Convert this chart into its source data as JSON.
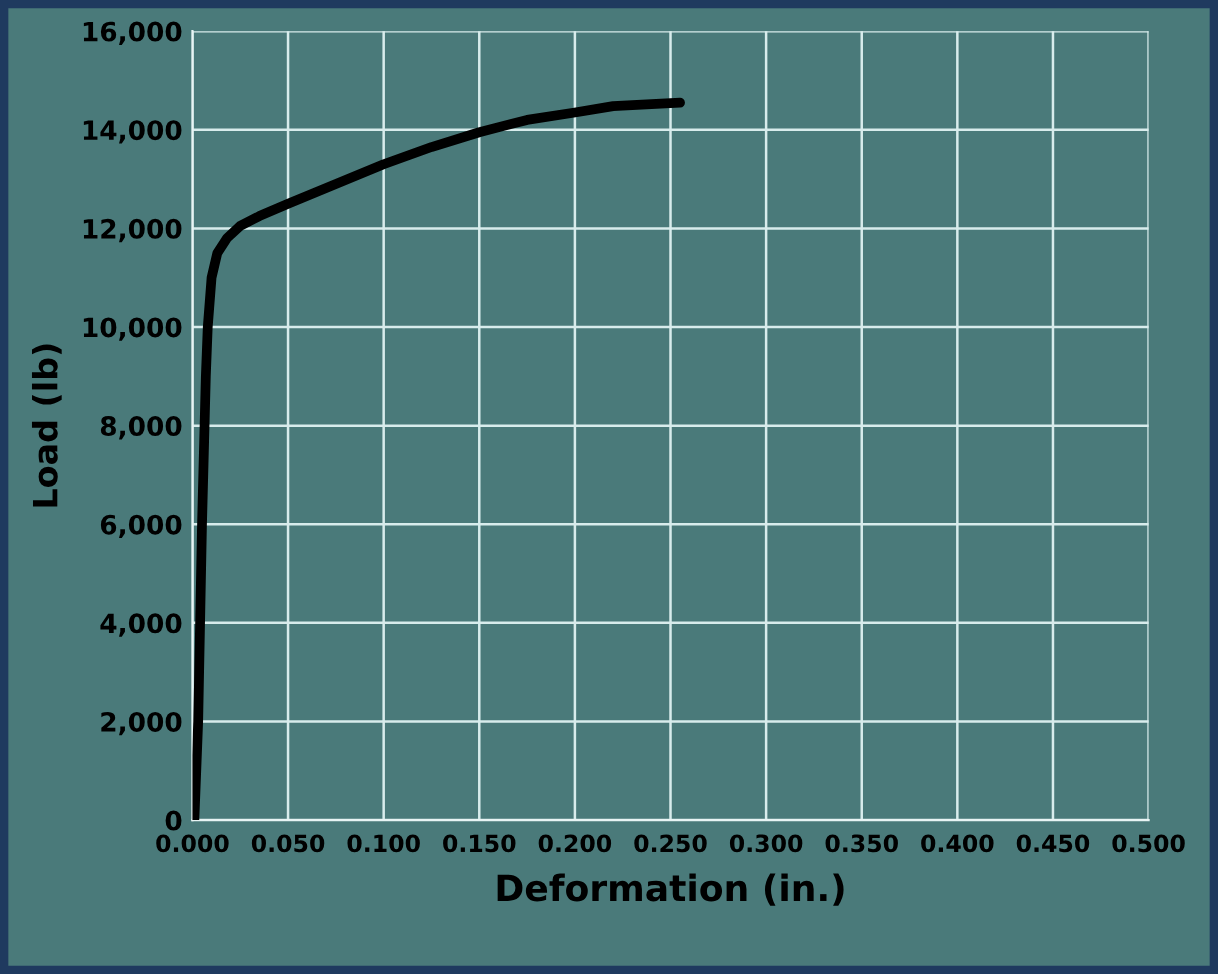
{
  "chart_data": {
    "type": "line",
    "xlabel": "Deformation (in.)",
    "ylabel": "Load (lb)",
    "x": [
      0.001,
      0.003,
      0.005,
      0.007,
      0.008,
      0.01,
      0.013,
      0.018,
      0.025,
      0.035,
      0.05,
      0.075,
      0.1,
      0.125,
      0.15,
      0.175,
      0.2,
      0.22,
      0.255
    ],
    "series": [
      {
        "color": "#000000",
        "values": [
          0,
          2000,
          6000,
          9000,
          10000,
          11000,
          11500,
          11800,
          12050,
          12250,
          12500,
          12900,
          13300,
          13650,
          13950,
          14200,
          14350,
          14480,
          14550
        ]
      }
    ],
    "xlim": [
      0,
      0.5
    ],
    "ylim": [
      0,
      16000
    ],
    "xticks": [
      {
        "value": 0,
        "label": "0.000"
      },
      {
        "value": 0.05,
        "label": "0.050"
      },
      {
        "value": 0.1,
        "label": "0.100"
      },
      {
        "value": 0.15,
        "label": "0.150"
      },
      {
        "value": 0.2,
        "label": "0.200"
      },
      {
        "value": 0.25,
        "label": "0.250"
      },
      {
        "value": 0.3,
        "label": "0.300"
      },
      {
        "value": 0.35,
        "label": "0.350"
      },
      {
        "value": 0.4,
        "label": "0.400"
      },
      {
        "value": 0.45,
        "label": "0.450"
      },
      {
        "value": 0.5,
        "label": "0.500"
      }
    ],
    "yticks": [
      0,
      {
        "value": 2000,
        "label": "2,000"
      },
      {
        "value": 4000,
        "label": "4,000"
      },
      {
        "value": 6000,
        "label": "6,000"
      },
      {
        "value": 8000,
        "label": "8,000"
      },
      {
        "value": 10000,
        "label": "10,000"
      },
      {
        "value": 12000,
        "label": "12,000"
      },
      {
        "value": 14000,
        "label": "14,000"
      },
      {
        "value": 16000,
        "label": "16,000"
      }
    ],
    "grid": true,
    "line_style": "solid",
    "marker": "none"
  }
}
